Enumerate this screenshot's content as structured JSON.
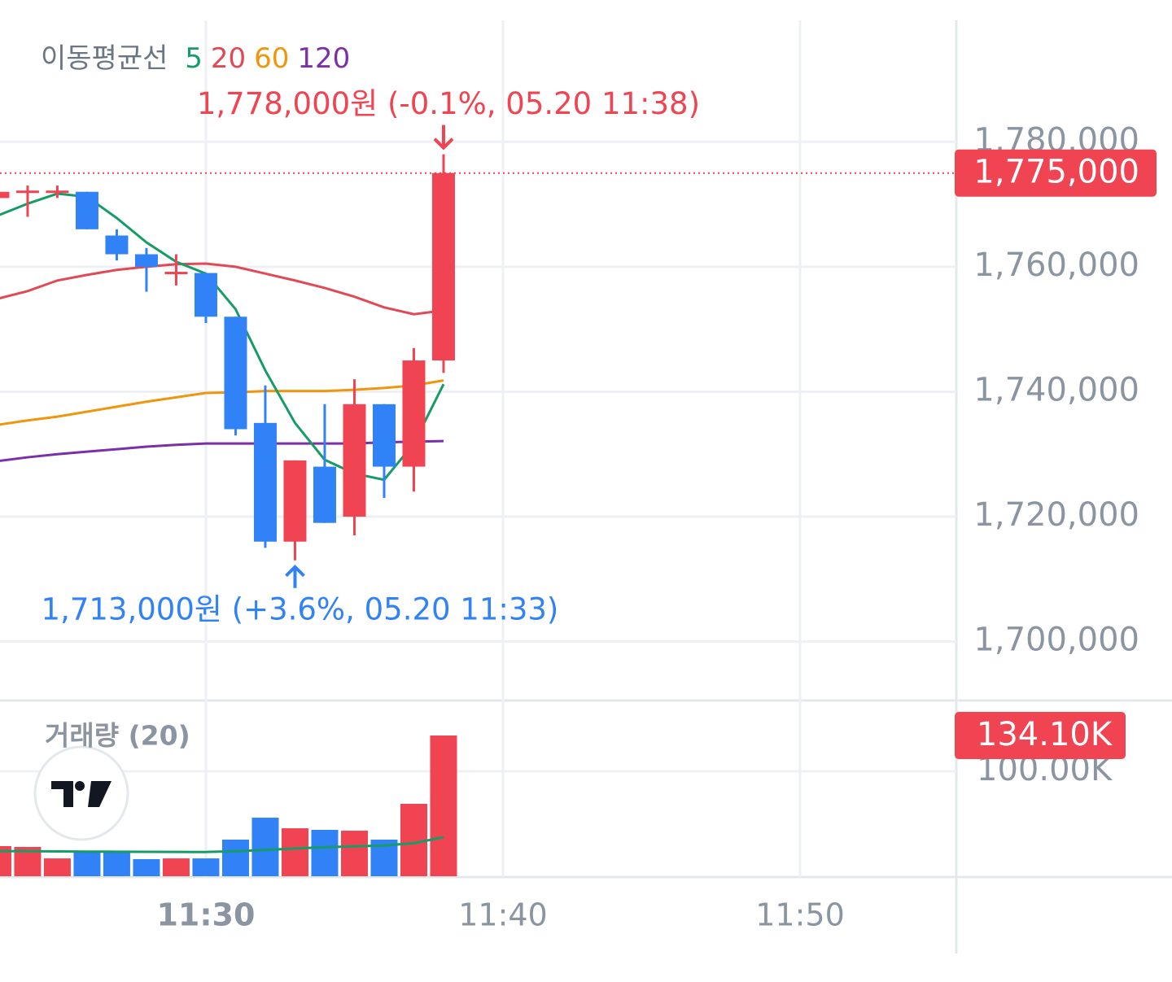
{
  "chart_data": [
    {
      "type": "candlestick",
      "legend_title": "이동평균선",
      "x": [
        23,
        24,
        25,
        26,
        27,
        28,
        29,
        30,
        31,
        32,
        33,
        34,
        35,
        36,
        37,
        38
      ],
      "open": [
        1771000,
        1772000,
        1772000,
        1772000,
        1765000,
        1762000,
        1759000,
        1759000,
        1752000,
        1735000,
        1716000,
        1728000,
        1720000,
        1738000,
        1728000,
        1745000
      ],
      "high": [
        1772000,
        1773000,
        1773000,
        1772000,
        1766000,
        1763000,
        1762000,
        1759000,
        1752000,
        1741000,
        1729000,
        1738000,
        1742000,
        1738000,
        1747000,
        1778000
      ],
      "low": [
        1771000,
        1768000,
        1771000,
        1766000,
        1761000,
        1756000,
        1757000,
        1751000,
        1733000,
        1715000,
        1713000,
        1719000,
        1717000,
        1723000,
        1724000,
        1743000
      ],
      "close": [
        1772000,
        1772000,
        1772000,
        1766000,
        1762000,
        1760000,
        1759000,
        1752000,
        1734000,
        1716000,
        1729000,
        1719000,
        1738000,
        1728000,
        1745000,
        1775000
      ],
      "up_color": "#f04452",
      "down_color": "#3182f6",
      "last_value_label": "1,775,000",
      "max_annotation": "1,778,000원 (-0.1%, 05.20 11:38)",
      "min_annotation": "1,713,000원 (+3.6%, 05.20 11:33)",
      "series": [
        {
          "name": "5",
          "color": "#179c67",
          "values": [
            1768200,
            1770100,
            1771700,
            1771200,
            1767800,
            1763900,
            1760800,
            1758900,
            1753200,
            1743400,
            1735000,
            1729100,
            1726900,
            1725900,
            1731700,
            1741200
          ]
        },
        {
          "name": "20",
          "color": "#e04a57",
          "values": [
            1754900,
            1756100,
            1757800,
            1758700,
            1759500,
            1760000,
            1760400,
            1760500,
            1760000,
            1758900,
            1757800,
            1756600,
            1755200,
            1753500,
            1752400,
            1753000
          ]
        },
        {
          "name": "60",
          "color": "#f0960e",
          "values": [
            1734700,
            1735400,
            1736000,
            1736800,
            1737600,
            1738400,
            1739100,
            1739800,
            1739900,
            1740100,
            1740100,
            1740100,
            1740300,
            1740600,
            1741000,
            1741800
          ]
        },
        {
          "name": "120",
          "color": "#7b2fa8",
          "values": [
            1728900,
            1729500,
            1730000,
            1730400,
            1730800,
            1731200,
            1731500,
            1731700,
            1731700,
            1731700,
            1731700,
            1731700,
            1731700,
            1731900,
            1732000,
            1732100
          ]
        }
      ],
      "xlim": [
        23.07,
        55.26
      ],
      "ylim": [
        1690700,
        1802700
      ],
      "yticks": [
        {
          "value": 1700000,
          "label": "1,700,000"
        },
        {
          "value": 1720000,
          "label": "1,720,000"
        },
        {
          "value": 1740000,
          "label": "1,740,000"
        },
        {
          "value": 1760000,
          "label": "1,760,000"
        },
        {
          "value": 1780000,
          "label": "1,780,000"
        }
      ],
      "grid": true
    },
    {
      "type": "bar",
      "title": "거래량 (20)",
      "x": [
        23,
        24,
        25,
        26,
        27,
        28,
        29,
        30,
        31,
        32,
        33,
        34,
        35,
        36,
        37,
        38
      ],
      "values": [
        28700,
        27900,
        17000,
        23300,
        23300,
        16300,
        17000,
        17000,
        34900,
        55800,
        45700,
        44200,
        43400,
        34900,
        69000,
        134100
      ],
      "last_value_label": "134.10K",
      "ma_color": "#179c67",
      "ma_values": [
        24000,
        23800,
        23600,
        23500,
        23400,
        23300,
        23200,
        23100,
        23800,
        25000,
        26500,
        27600,
        28500,
        29300,
        31500,
        37200
      ],
      "xlim": [
        23.07,
        55.26
      ],
      "ylim": [
        0,
        166700
      ],
      "yticks": [
        {
          "value": 100000,
          "label": "100.00K"
        }
      ],
      "xticks": [
        {
          "value": 30,
          "label": "11:30"
        },
        {
          "value": 40,
          "label": "11:40"
        },
        {
          "value": 50,
          "label": "11:50"
        }
      ],
      "grid": true
    }
  ]
}
